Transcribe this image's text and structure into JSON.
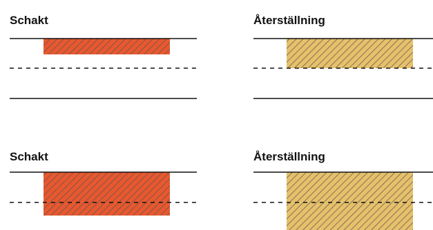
{
  "panels": [
    {
      "title": "Schakt"
    },
    {
      "title": "Återställning"
    },
    {
      "title": "Schakt"
    },
    {
      "title": "Återställning"
    }
  ],
  "colors": {
    "schakt_fill": "#e8582e",
    "aterstallning_fill": "#e6c06a",
    "hatch_stroke": "#555555",
    "line": "#111111"
  }
}
